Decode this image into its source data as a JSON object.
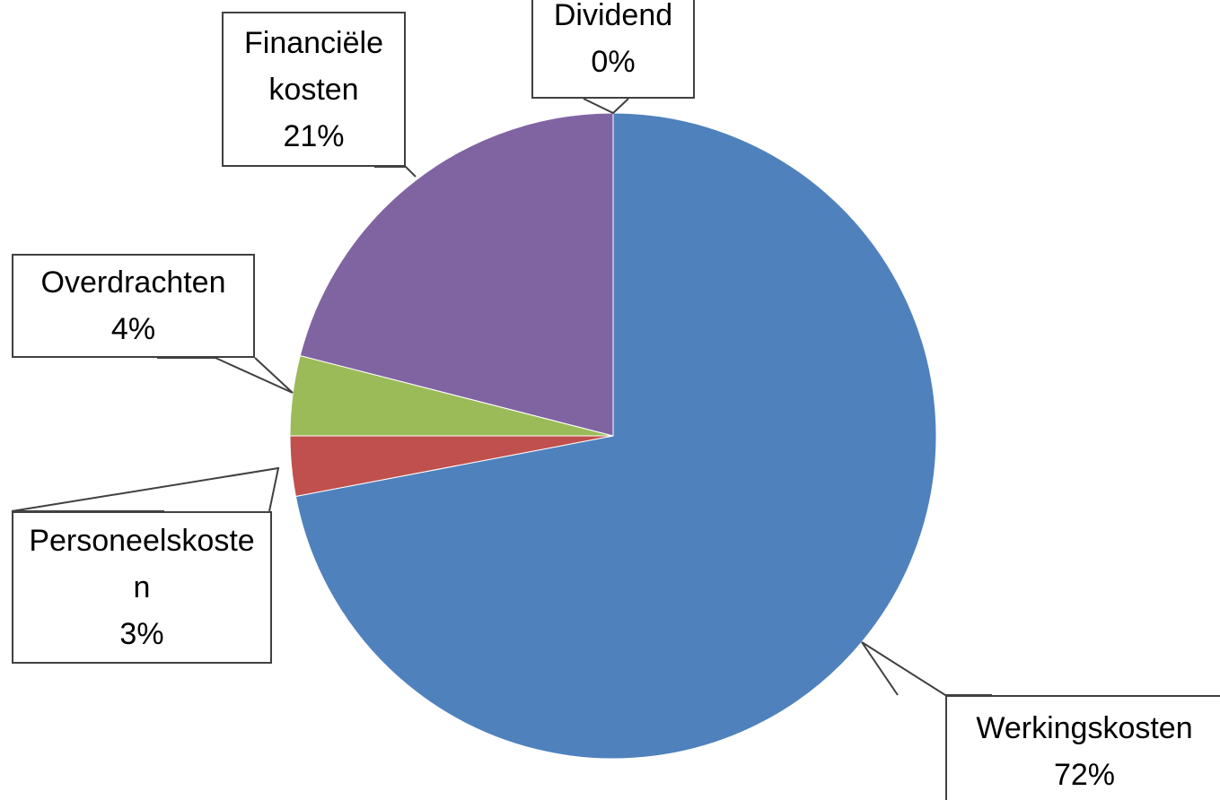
{
  "chart_data": {
    "type": "pie",
    "categories": [
      "Werkingskosten",
      "Personeelskosten",
      "Overdrachten",
      "Financiële kosten",
      "Dividend"
    ],
    "values": [
      72,
      3,
      4,
      21,
      0
    ],
    "value_labels": [
      "72%",
      "3%",
      "4%",
      "21%",
      "0%"
    ],
    "colors": [
      "#4f81bd",
      "#c0504d",
      "#9bbb59",
      "#8064a2",
      "#4bacc6"
    ]
  }
}
